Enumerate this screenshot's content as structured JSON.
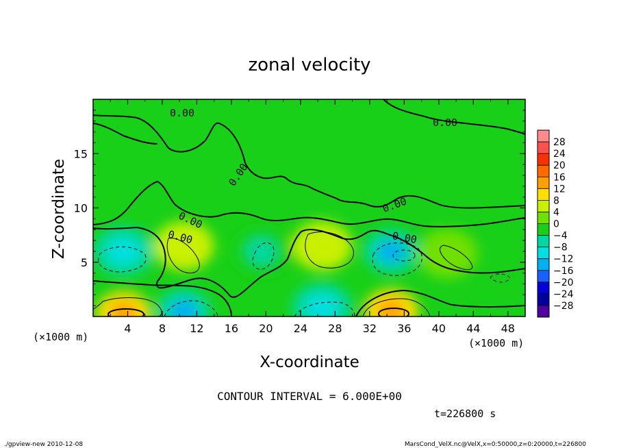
{
  "chart_data": {
    "type": "contour",
    "title": "zonal velocity",
    "xlabel": "X-coordinate",
    "ylabel": "Z-coordinate",
    "x_unit_left": "(×1000 m)",
    "x_unit_right": "(×1000 m)",
    "xlim": [
      0,
      50
    ],
    "ylim": [
      0,
      20
    ],
    "x_ticks": [
      "4",
      "8",
      "12",
      "16",
      "20",
      "24",
      "28",
      "32",
      "36",
      "40",
      "44",
      "48"
    ],
    "x_tick_values": [
      4,
      8,
      12,
      16,
      20,
      24,
      28,
      32,
      36,
      40,
      44,
      48
    ],
    "y_ticks": [
      "5",
      "10",
      "15"
    ],
    "y_tick_values": [
      5,
      10,
      15
    ],
    "contour_labels": [
      "0.00",
      "0.00",
      "0.00",
      "0.00",
      "0.00",
      "0.00",
      "0.00"
    ],
    "contour_interval": "CONTOUR INTERVAL = 6.000E+00",
    "time": "t=226800 s",
    "colorbar": {
      "levels": [
        "28",
        "24",
        "20",
        "16",
        "12",
        "8",
        "4",
        "0",
        "−4",
        "−8",
        "−12",
        "−16",
        "−20",
        "−24",
        "−28"
      ],
      "colors": [
        "#ff8a8a",
        "#ff5050",
        "#ff3000",
        "#ff6a00",
        "#ffa000",
        "#ffe000",
        "#c8f000",
        "#70e000",
        "#18d018",
        "#00d8a0",
        "#00e0e0",
        "#00b0f0",
        "#1860ff",
        "#0000d8",
        "#0000a0",
        "#5000a0"
      ]
    },
    "features": [
      {
        "x": 3.5,
        "z": 6.0,
        "value": -8
      },
      {
        "x": 10.5,
        "z": 6.5,
        "value": 8
      },
      {
        "x": 19.5,
        "z": 6.0,
        "value": -4
      },
      {
        "x": 26.5,
        "z": 6.5,
        "value": 8
      },
      {
        "x": 34.5,
        "z": 6.0,
        "value": -12
      },
      {
        "x": 41.0,
        "z": 5.8,
        "value": 4
      },
      {
        "x": 3.5,
        "z": 0.3,
        "value": 16
      },
      {
        "x": 10.5,
        "z": 0.5,
        "value": -12
      },
      {
        "x": 26.5,
        "z": 0.8,
        "value": -10
      },
      {
        "x": 34.5,
        "z": 0.5,
        "value": 16
      }
    ]
  },
  "footer": {
    "left": "./gpview-new 2010-12-08",
    "right": "MarsCond_VelX.nc@VelX,x=0:50000,z=0:20000,t=226800"
  }
}
